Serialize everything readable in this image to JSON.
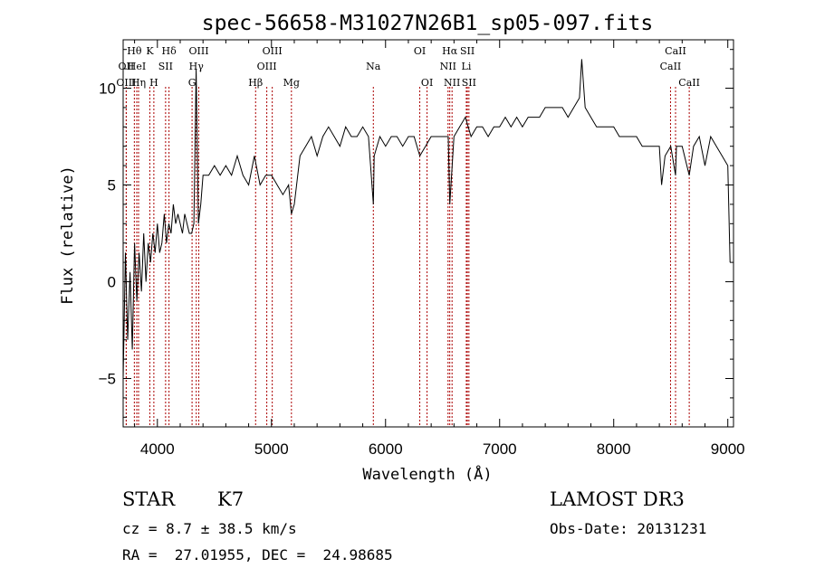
{
  "chart_data": {
    "type": "line",
    "title": "spec-56658-M31027N26B1_sp05-097.fits",
    "xlabel": "Wavelength (Å)",
    "ylabel": "Flux (relative)",
    "xlim": [
      3700,
      9050
    ],
    "ylim": [
      -7.5,
      12.5
    ],
    "xticks": [
      4000,
      5000,
      6000,
      7000,
      8000,
      9000
    ],
    "yticks": [
      -5,
      0,
      5,
      10
    ],
    "grid": false,
    "legend": "none",
    "line_color": "#000000",
    "marker_color": "#aa0000",
    "series": [
      {
        "x": [
          3700,
          3720,
          3740,
          3760,
          3780,
          3800,
          3820,
          3840,
          3860,
          3880,
          3900,
          3920,
          3940,
          3960,
          3980,
          4000,
          4020,
          4040,
          4060,
          4080,
          4100,
          4120,
          4140,
          4160,
          4180,
          4200,
          4220,
          4240,
          4260,
          4280,
          4300,
          4320,
          4340,
          4360,
          4380,
          4400,
          4450,
          4500,
          4550,
          4600,
          4650,
          4700,
          4750,
          4800,
          4850,
          4900,
          4950,
          5000,
          5050,
          5100,
          5150,
          5175,
          5200,
          5250,
          5300,
          5350,
          5400,
          5450,
          5500,
          5550,
          5600,
          5650,
          5700,
          5750,
          5800,
          5850,
          5893,
          5900,
          5950,
          6000,
          6050,
          6100,
          6150,
          6200,
          6250,
          6300,
          6350,
          6400,
          6450,
          6500,
          6550,
          6563,
          6600,
          6650,
          6700,
          6750,
          6800,
          6850,
          6900,
          6950,
          7000,
          7050,
          7100,
          7150,
          7200,
          7250,
          7300,
          7350,
          7400,
          7450,
          7500,
          7550,
          7600,
          7650,
          7700,
          7720,
          7750,
          7800,
          7850,
          7900,
          7950,
          8000,
          8050,
          8100,
          8150,
          8200,
          8250,
          8300,
          8350,
          8400,
          8420,
          8450,
          8500,
          8542,
          8550,
          8600,
          8662,
          8700,
          8750,
          8800,
          8850,
          8900,
          8950,
          9000,
          9020
        ],
        "y": [
          -5,
          1.5,
          -3,
          0.5,
          -3.5,
          2,
          -1,
          1.5,
          -0.5,
          2.5,
          0,
          2,
          1,
          2.5,
          1.5,
          3,
          1.5,
          2,
          3.5,
          2,
          3,
          2.5,
          4,
          3,
          3.5,
          3,
          2.5,
          3.5,
          3,
          2.5,
          2.5,
          3,
          11,
          3,
          4,
          5.5,
          5.5,
          6,
          5.5,
          6,
          5.5,
          6.5,
          5.5,
          5,
          6.5,
          5,
          5.5,
          5.5,
          5,
          4.5,
          5,
          3.5,
          4,
          6.5,
          7,
          7.5,
          6.5,
          7.5,
          8,
          7.5,
          7,
          8,
          7.5,
          7.5,
          8,
          7.5,
          4,
          6.5,
          7.5,
          7,
          7.5,
          7.5,
          7,
          7.5,
          7.5,
          6.5,
          7,
          7.5,
          7.5,
          7.5,
          7.5,
          4,
          7.5,
          8,
          8.5,
          7.5,
          8,
          8,
          7.5,
          8,
          8,
          8.5,
          8,
          8.5,
          8,
          8.5,
          8.5,
          8.5,
          9,
          9,
          9,
          9,
          8.5,
          9,
          9.5,
          11.5,
          9,
          8.5,
          8,
          8,
          8,
          8,
          7.5,
          7.5,
          7.5,
          7.5,
          7,
          7,
          7,
          7,
          5,
          6.5,
          7,
          5.5,
          7,
          7,
          5.5,
          7,
          7.5,
          6,
          7.5,
          7,
          6.5,
          6,
          1
        ]
      }
    ],
    "emission_lines": [
      {
        "label": "Hθ",
        "x": 3798,
        "row": 0
      },
      {
        "label": "OII",
        "x": 3727,
        "row": 1
      },
      {
        "label": "OIII",
        "x": 3727,
        "row": 2
      },
      {
        "label": "HeI",
        "x": 3819,
        "row": 1
      },
      {
        "label": "Hη",
        "x": 3835,
        "row": 2
      },
      {
        "label": "K",
        "x": 3934,
        "row": 0
      },
      {
        "label": "H",
        "x": 3969,
        "row": 2
      },
      {
        "label": "Hδ",
        "x": 4102,
        "row": 0
      },
      {
        "label": "SII",
        "x": 4072,
        "row": 1
      },
      {
        "label": "OIII",
        "x": 4363,
        "row": 0
      },
      {
        "label": "Hγ",
        "x": 4341,
        "row": 1
      },
      {
        "label": "G",
        "x": 4304,
        "row": 2
      },
      {
        "label": "Hβ",
        "x": 4861,
        "row": 2
      },
      {
        "label": "OIII",
        "x": 5007,
        "row": 0
      },
      {
        "label": "OIII",
        "x": 4959,
        "row": 1
      },
      {
        "label": "Mg",
        "x": 5175,
        "row": 2
      },
      {
        "label": "Na",
        "x": 5893,
        "row": 1
      },
      {
        "label": "OI",
        "x": 6300,
        "row": 0
      },
      {
        "label": "OI",
        "x": 6364,
        "row": 2
      },
      {
        "label": "Hα",
        "x": 6563,
        "row": 0
      },
      {
        "label": "NII",
        "x": 6548,
        "row": 1
      },
      {
        "label": "NII",
        "x": 6583,
        "row": 2
      },
      {
        "label": "SII",
        "x": 6717,
        "row": 0
      },
      {
        "label": "Li",
        "x": 6708,
        "row": 1
      },
      {
        "label": "SII",
        "x": 6731,
        "row": 2
      },
      {
        "label": "CaII",
        "x": 8542,
        "row": 0
      },
      {
        "label": "CaII",
        "x": 8498,
        "row": 1
      },
      {
        "label": "CaII",
        "x": 8662,
        "row": 2
      }
    ]
  },
  "info": {
    "object_class": "STAR",
    "subclass": "K7",
    "survey": "LAMOST DR3",
    "redshift": "cz = 8.7 ± 38.5 km/s",
    "obs_date": "Obs-Date: 20131231",
    "coords": "RA =  27.01955, DEC =  24.98685"
  }
}
